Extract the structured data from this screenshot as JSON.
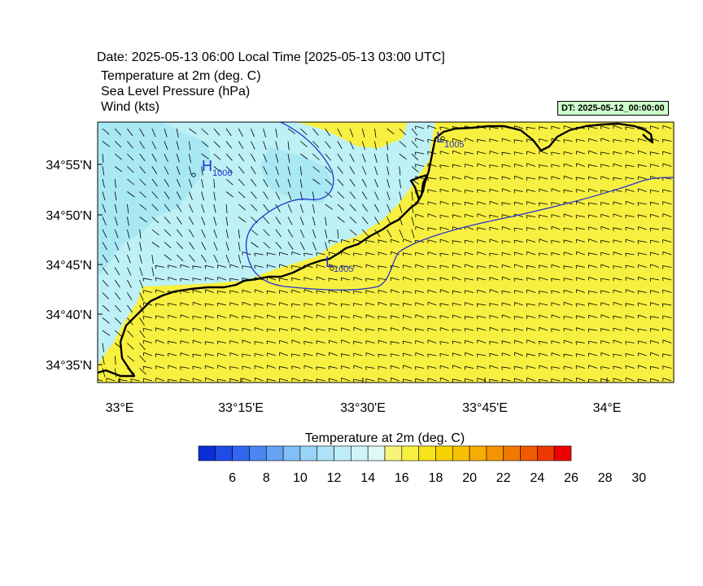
{
  "header": {
    "date_line": "Date: 2025-05-13  06:00 Local Time [2025-05-13  03:00 UTC]",
    "line1": "Temperature at 2m   (deg. C)",
    "line2": "Sea Level Pressure   (hPa)",
    "line3": "Wind   (kts)",
    "dt_badge": "DT: 2025-05-12_00:00:00"
  },
  "map": {
    "lat_labels": [
      "34°55'N",
      "34°50'N",
      "34°45'N",
      "34°40'N",
      "34°35'N"
    ],
    "lon_labels": [
      "33°E",
      "33°15'E",
      "33°30'E",
      "33°45'E",
      "34°E"
    ],
    "pressure_centers": [
      {
        "type": "H",
        "value": "1006"
      },
      {
        "type": "L",
        "value": "1005"
      },
      {
        "type": "L",
        "value": "1005"
      }
    ],
    "colors": {
      "warm_fill": "#f8f040",
      "cool_fill": "#bdf1f6",
      "cool_deep": "#a8e8f4",
      "coast": "#000000",
      "isobar": "#2233cc"
    }
  },
  "colorbar": {
    "title": "Temperature at 2m  (deg. C)",
    "labels": [
      "6",
      "8",
      "10",
      "12",
      "14",
      "16",
      "18",
      "20",
      "22",
      "24",
      "26",
      "28",
      "30"
    ],
    "colors": [
      "#0a2fd6",
      "#1f4be6",
      "#3366f0",
      "#4d86f2",
      "#66a3f5",
      "#80bff7",
      "#99d3f7",
      "#ade3f7",
      "#bdeef8",
      "#cdf5f8",
      "#ddfaf6",
      "#f8f47a",
      "#f8f040",
      "#f8e21a",
      "#f8d200",
      "#f8c000",
      "#f6ac00",
      "#f49400",
      "#f27800",
      "#f05a00",
      "#ee3800",
      "#f00000"
    ]
  }
}
